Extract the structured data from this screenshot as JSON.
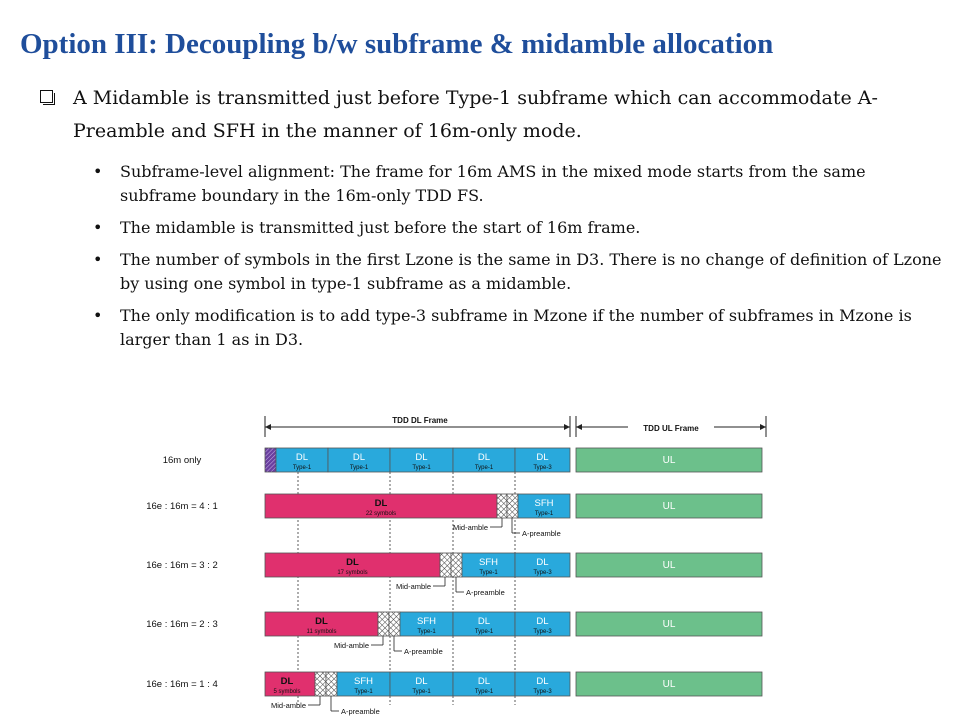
{
  "title": "Option III: Decoupling b/w subframe & midamble allocation",
  "main_bullet": "A Midamble is transmitted just before Type-1 subframe which can accommodate A-Preamble and SFH in the manner of 16m-only mode.",
  "sub_bullets": [
    "Subframe-level alignment: The frame for 16m AMS in the mixed mode starts from the same subframe boundary in the 16m-only TDD FS.",
    "The midamble is transmitted just before the start of 16m frame.",
    "The number of symbols in the first Lzone is the same in D3. There is no change of definition of Lzone by using one symbol in type-1 subframe as a midamble.",
    "The only modification is to add type-3 subframe in Mzone if the number of subframes in Mzone is larger than 1 as in D3."
  ],
  "diagram": {
    "tdd_dl_frame": "TDD DL Frame",
    "tdd_ul_frame": "TDD UL Frame",
    "colors": {
      "blue": "#29a9dc",
      "green": "#6cc08b",
      "pink": "#e0306e",
      "purple": "#6a3fa0"
    },
    "rows": [
      {
        "label": "16m  only",
        "blocks": [
          {
            "kind": "purple",
            "t1": "",
            "t2": ""
          },
          {
            "kind": "blue",
            "t1": "DL",
            "t2": "Type-1"
          },
          {
            "kind": "blue",
            "t1": "DL",
            "t2": "Type-1"
          },
          {
            "kind": "blue",
            "t1": "DL",
            "t2": "Type-1"
          },
          {
            "kind": "blue",
            "t1": "DL",
            "t2": "Type-1"
          },
          {
            "kind": "blue",
            "t1": "DL",
            "t2": "Type-3"
          },
          {
            "kind": "green",
            "t1": "UL",
            "t2": ""
          }
        ]
      },
      {
        "label": "16e : 16m  = 4 : 1",
        "blocks": [
          {
            "kind": "pink",
            "t1": "DL",
            "t2": "22 symbols"
          },
          {
            "kind": "hatch",
            "t1": "",
            "t2": ""
          },
          {
            "kind": "hatch",
            "t1": "",
            "t2": ""
          },
          {
            "kind": "blue",
            "t1": "SFH",
            "t2": "Type-1"
          },
          {
            "kind": "green",
            "t1": "UL",
            "t2": ""
          }
        ],
        "mid": "Mid-amble",
        "apre": "A-preamble"
      },
      {
        "label": "16e : 16m  = 3 : 2",
        "blocks": [
          {
            "kind": "pink",
            "t1": "DL",
            "t2": "17 symbols"
          },
          {
            "kind": "hatch",
            "t1": "",
            "t2": ""
          },
          {
            "kind": "hatch",
            "t1": "",
            "t2": ""
          },
          {
            "kind": "blue",
            "t1": "SFH",
            "t2": "Type-1"
          },
          {
            "kind": "blue",
            "t1": "DL",
            "t2": "Type-3"
          },
          {
            "kind": "green",
            "t1": "UL",
            "t2": ""
          }
        ],
        "mid": "Mid-amble",
        "apre": "A-preamble"
      },
      {
        "label": "16e : 16m  = 2 : 3",
        "blocks": [
          {
            "kind": "pink",
            "t1": "DL",
            "t2": "11 symbols"
          },
          {
            "kind": "hatch",
            "t1": "",
            "t2": ""
          },
          {
            "kind": "hatch",
            "t1": "",
            "t2": ""
          },
          {
            "kind": "blue",
            "t1": "SFH",
            "t2": "Type-1"
          },
          {
            "kind": "blue",
            "t1": "DL",
            "t2": "Type-1"
          },
          {
            "kind": "blue",
            "t1": "DL",
            "t2": "Type-3"
          },
          {
            "kind": "green",
            "t1": "UL",
            "t2": ""
          }
        ],
        "mid": "Mid-amble",
        "apre": "A-preamble"
      },
      {
        "label": "16e : 16m  = 1 : 4",
        "blocks": [
          {
            "kind": "pink",
            "t1": "DL",
            "t2": "5 symbols"
          },
          {
            "kind": "hatch",
            "t1": "",
            "t2": ""
          },
          {
            "kind": "hatch",
            "t1": "",
            "t2": ""
          },
          {
            "kind": "blue",
            "t1": "SFH",
            "t2": "Type-1"
          },
          {
            "kind": "blue",
            "t1": "DL",
            "t2": "Type-1"
          },
          {
            "kind": "blue",
            "t1": "DL",
            "t2": "Type-1"
          },
          {
            "kind": "blue",
            "t1": "DL",
            "t2": "Type-3"
          },
          {
            "kind": "green",
            "t1": "UL",
            "t2": ""
          }
        ],
        "mid": "Mid-amble",
        "apre": "A-preamble"
      }
    ]
  }
}
